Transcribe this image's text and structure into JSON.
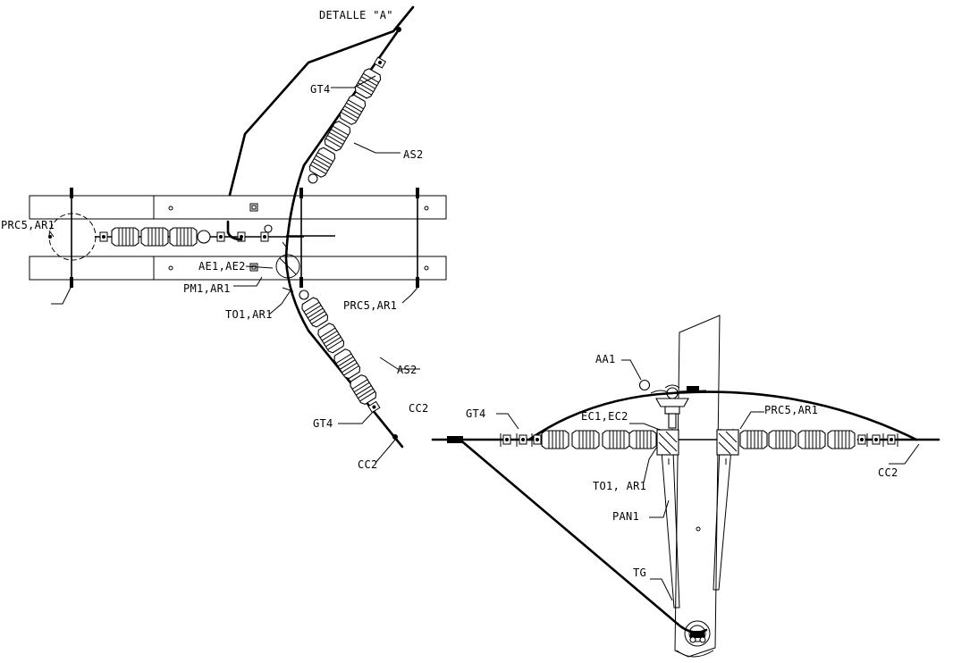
{
  "labels": {
    "detalle": "DETALLE \"A\"",
    "gt4_top": "GT4",
    "as2_top": "AS2",
    "prc5_left": "PRC5,AR1",
    "ae1": "AE1,AE2",
    "pm1": "PM1,AR1",
    "to1_left": "TO1,AR1",
    "prc5_mid": "PRC5,AR1",
    "as2_mid": "AS2",
    "gt4_mid": "GT4",
    "cc2_mid": "CC2",
    "aa1": "AA1",
    "cc2_left": "CC2",
    "gt4_right": "GT4",
    "ec1": "EC1,EC2",
    "prc5_right": "PRC5,AR1",
    "to1_right": "TO1, AR1",
    "pan1": "PAN1",
    "tg": "TG",
    "cc2_right": "CC2"
  }
}
